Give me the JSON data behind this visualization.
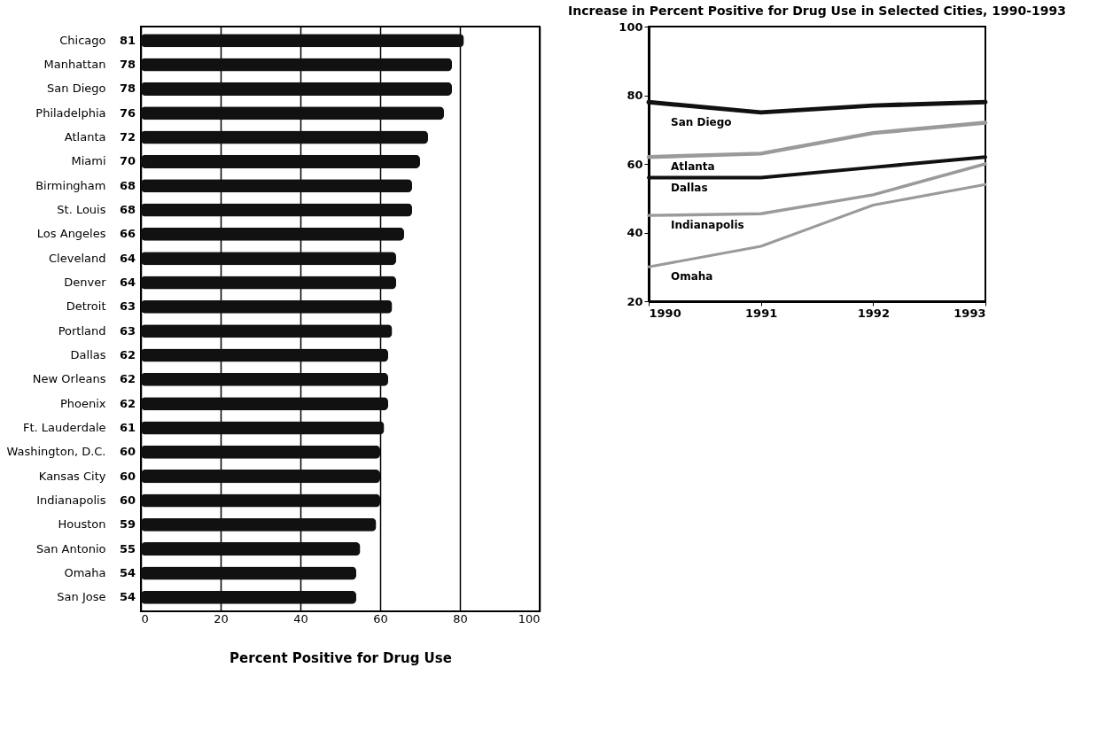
{
  "chart_data": [
    {
      "type": "bar",
      "orientation": "horizontal",
      "xlabel": "Percent Positive for Drug Use",
      "categories": [
        "Chicago",
        "Manhattan",
        "San Diego",
        "Philadelphia",
        "Atlanta",
        "Miami",
        "Birmingham",
        "St. Louis",
        "Los Angeles",
        "Cleveland",
        "Denver",
        "Detroit",
        "Portland",
        "Dallas",
        "New Orleans",
        "Phoenix",
        "Ft. Lauderdale",
        "Washington, D.C.",
        "Kansas City",
        "Indianapolis",
        "Houston",
        "San Antonio",
        "Omaha",
        "San Jose"
      ],
      "values": [
        81,
        78,
        78,
        76,
        72,
        70,
        68,
        68,
        66,
        64,
        64,
        63,
        63,
        62,
        62,
        62,
        61,
        60,
        60,
        60,
        59,
        55,
        54,
        54
      ],
      "color": "#111111",
      "data_labels": true,
      "xlim": [
        0,
        100
      ],
      "xticks": [
        0,
        20,
        40,
        60,
        80,
        100
      ],
      "grid": "x",
      "legend": false
    },
    {
      "type": "line",
      "title": "Increase in Percent Positive for Drug Use in Selected Cities, 1990-1993",
      "x": [
        1990,
        1991,
        1992,
        1993
      ],
      "xlim": [
        1990,
        1993
      ],
      "xticks": [
        1990,
        1991,
        1992,
        1993
      ],
      "ylim": [
        20,
        100
      ],
      "yticks": [
        20,
        40,
        60,
        80,
        100
      ],
      "grid": false,
      "legend": false,
      "series": [
        {
          "name": "San Diego",
          "color": "#111111",
          "values": [
            78,
            75,
            77,
            78
          ]
        },
        {
          "name": "Atlanta",
          "color": "#9a9a9a",
          "values": [
            62,
            63,
            69,
            72
          ]
        },
        {
          "name": "Dallas",
          "color": "#111111",
          "values": [
            56,
            56,
            59,
            62
          ]
        },
        {
          "name": "Indianapolis",
          "color": "#9a9a9a",
          "values": [
            45,
            45.5,
            51,
            60
          ]
        },
        {
          "name": "Omaha",
          "color": "#9a9a9a",
          "values": [
            30,
            36,
            48,
            54
          ]
        }
      ]
    }
  ]
}
